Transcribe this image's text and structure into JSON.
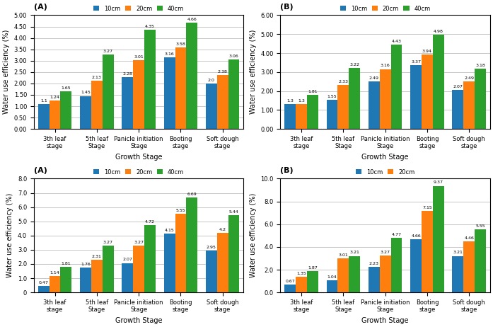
{
  "chart_data": [
    {
      "type": "bar",
      "title": "(A)",
      "categories": [
        "3th leaf\nstage",
        "5th leaf\nStage",
        "Panicle initiation\nStage",
        "Booting\nstage",
        "Soft dough\nstage"
      ],
      "x_label": "Growth Stage",
      "y_label": "Water use efficiency (%)",
      "ylim": [
        0,
        5
      ],
      "yticks": [
        {
          "value": 0,
          "label": "0.00"
        },
        {
          "value": 0.5,
          "label": "0.50"
        },
        {
          "value": 1,
          "label": "1.00"
        },
        {
          "value": 1.5,
          "label": "1.50"
        },
        {
          "value": 2,
          "label": "2.00"
        },
        {
          "value": 2.5,
          "label": "2.50"
        },
        {
          "value": 3,
          "label": "3.00"
        },
        {
          "value": 3.5,
          "label": "3.50"
        },
        {
          "value": 4,
          "label": "4.00"
        },
        {
          "value": 4.5,
          "label": "4.50"
        },
        {
          "value": 5,
          "label": "5.00"
        }
      ],
      "grid": true,
      "legend": "upper center",
      "data_labels": true,
      "series": [
        {
          "name": "10cm",
          "values": [
            1.1,
            1.45,
            2.28,
            3.16,
            2.0
          ]
        },
        {
          "name": "20cm",
          "values": [
            1.24,
            2.13,
            3.01,
            3.58,
            2.38
          ]
        },
        {
          "name": "40cm",
          "values": [
            1.65,
            3.27,
            4.35,
            4.66,
            3.06
          ]
        }
      ]
    },
    {
      "type": "bar",
      "title": "(B)",
      "categories": [
        "3th leaf\nstage",
        "5th leaf\nStage",
        "Panicle initiation\nStage",
        "Booting\nstage",
        "Soft dough\nstage"
      ],
      "x_label": "Growth Stage",
      "y_label": "Water use efficiency (%)",
      "ylim": [
        0,
        6
      ],
      "yticks": [
        {
          "value": 0,
          "label": "0.00"
        },
        {
          "value": 1,
          "label": "1.00"
        },
        {
          "value": 2,
          "label": "2.00"
        },
        {
          "value": 3,
          "label": "3.00"
        },
        {
          "value": 4,
          "label": "4.00"
        },
        {
          "value": 5,
          "label": "5.00"
        },
        {
          "value": 6,
          "label": "6.00"
        }
      ],
      "grid": true,
      "legend": "upper center",
      "data_labels": true,
      "series": [
        {
          "name": "10cm",
          "values": [
            1.3,
            1.55,
            2.49,
            3.37,
            2.07
          ]
        },
        {
          "name": "20cm",
          "values": [
            1.3,
            2.33,
            3.16,
            3.94,
            2.49
          ]
        },
        {
          "name": "40cm",
          "values": [
            1.81,
            3.22,
            4.43,
            4.98,
            3.18
          ]
        }
      ]
    },
    {
      "type": "bar",
      "title": "(A)",
      "categories": [
        "3th leaf\nstage",
        "5th leaf\nStage",
        "Panicle initiation\nStage",
        "Booting\nstage",
        "Soft dough\nstage"
      ],
      "x_label": "Growth Stage",
      "y_label": "Water use efficiency (%)",
      "ylim": [
        0,
        8
      ],
      "yticks": [
        0,
        {
          "value": 1,
          "label": "1.0"
        },
        {
          "value": 2,
          "label": "2.0"
        },
        {
          "value": 3,
          "label": "3.0"
        },
        {
          "value": 4,
          "label": "4.0"
        },
        {
          "value": 5,
          "label": "5.0"
        },
        {
          "value": 6,
          "label": "6.0"
        },
        {
          "value": 7,
          "label": "7.0"
        },
        {
          "value": 8,
          "label": "8.0"
        }
      ],
      "grid": true,
      "legend": "upper center",
      "data_labels": true,
      "series": [
        {
          "name": "10cm",
          "values": [
            0.47,
            1.76,
            2.07,
            4.15,
            2.95
          ]
        },
        {
          "name": "20cm",
          "values": [
            1.14,
            2.31,
            3.27,
            5.55,
            4.2
          ]
        },
        {
          "name": "40cm",
          "values": [
            1.81,
            3.27,
            4.72,
            6.69,
            5.44
          ]
        }
      ]
    },
    {
      "type": "bar",
      "title": "(B)",
      "categories": [
        "3th leaf\nstage",
        "5th leaf\nStage",
        "Panicle initiation\nStage",
        "Booting\nstage",
        "Soft dough\nstage"
      ],
      "x_label": "Growth Stage",
      "y_label": "Water use efficiency (%)",
      "ylim": [
        0,
        10
      ],
      "yticks": [
        {
          "value": 0,
          "label": "0.0"
        },
        {
          "value": 2,
          "label": "2.0"
        },
        {
          "value": 4,
          "label": "4.0"
        },
        {
          "value": 6,
          "label": "6.0"
        },
        {
          "value": 8,
          "label": "8.0"
        },
        {
          "value": 10,
          "label": "10.0"
        }
      ],
      "grid": true,
      "legend": "upper center",
      "data_labels": true,
      "series": [
        {
          "name": "10cm",
          "values": [
            0.67,
            1.04,
            2.23,
            4.66,
            3.21
          ]
        },
        {
          "name": "20cm",
          "values": [
            1.35,
            3.01,
            3.27,
            7.15,
            4.46
          ]
        },
        {
          "values": [
            1.87,
            3.21,
            4.77,
            9.37,
            5.55
          ]
        }
      ]
    }
  ]
}
